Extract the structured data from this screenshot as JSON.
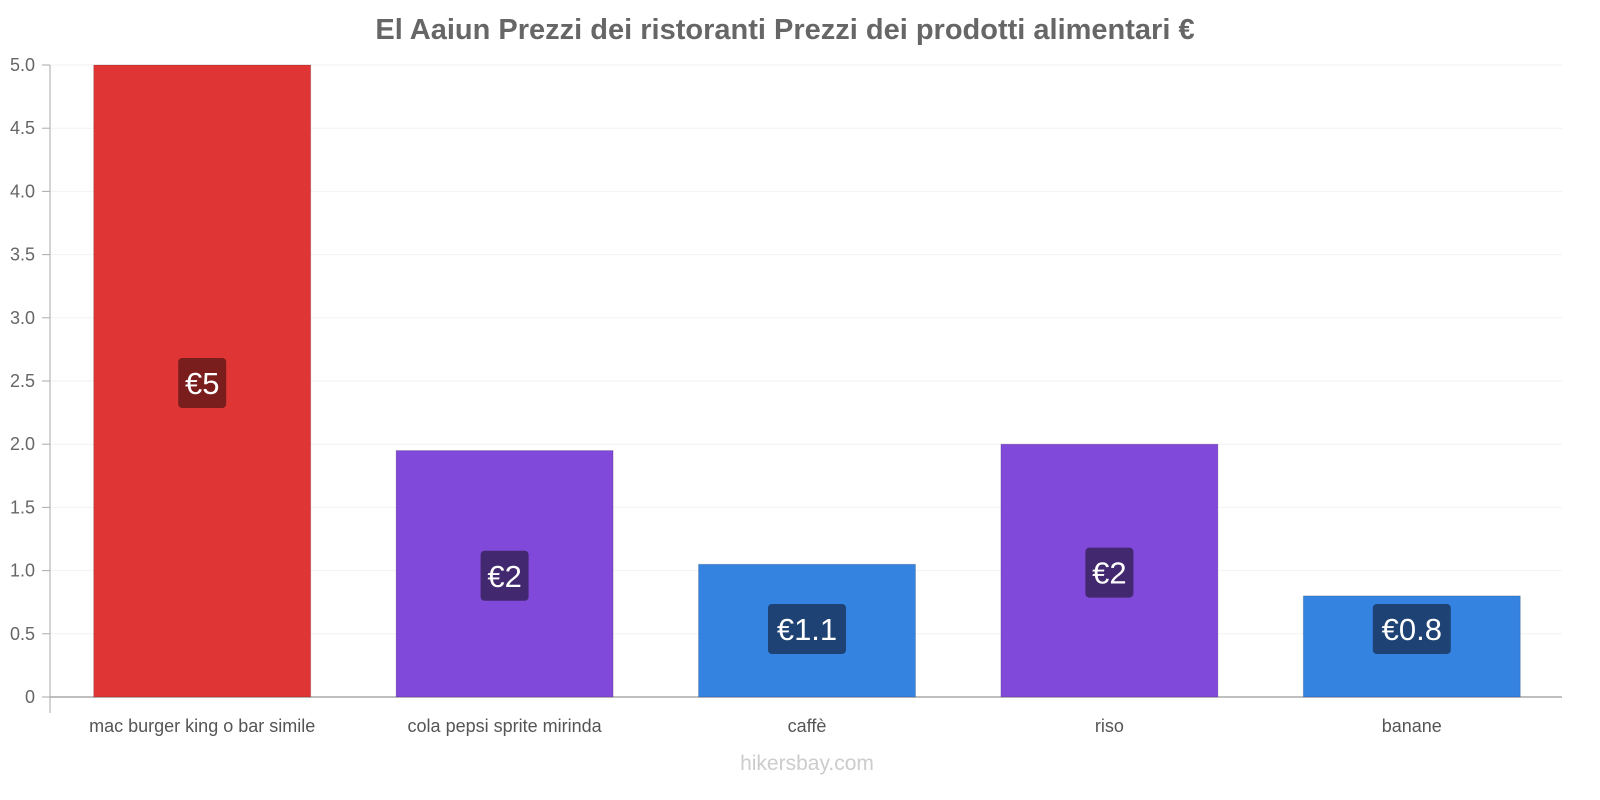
{
  "chart_data": {
    "type": "bar",
    "title": "El Aaiun Prezzi dei ristoranti Prezzi dei prodotti alimentari €",
    "xlabel": "",
    "ylabel": "",
    "ylim": [
      0,
      5
    ],
    "yticks": [
      "0",
      "0.5",
      "1.0",
      "1.5",
      "2.0",
      "2.5",
      "3.0",
      "3.5",
      "4.0",
      "4.5",
      "5.0"
    ],
    "grid": true,
    "categories": [
      "mac burger king o bar simile",
      "cola pepsi sprite mirinda",
      "caffè",
      "riso",
      "banane"
    ],
    "values": [
      5.0,
      1.95,
      1.05,
      2.0,
      0.8
    ],
    "data_labels": [
      "€5",
      "€2",
      "€1.1",
      "€2",
      "€0.8"
    ],
    "bar_colors": [
      "#e03535",
      "#8149d9",
      "#3583e0",
      "#8149d9",
      "#3583e0"
    ],
    "label_colors": [
      "#7a1d1d",
      "#42286f",
      "#1d4273",
      "#42286f",
      "#1d4273"
    ]
  },
  "watermark": "hikersbay.com"
}
